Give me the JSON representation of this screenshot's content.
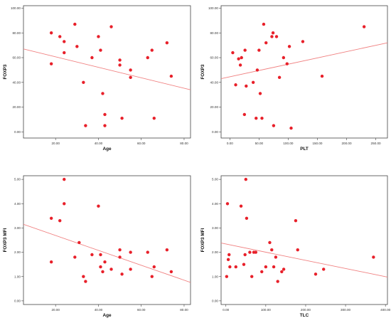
{
  "colors": {
    "point": "#e8202a",
    "fit_line": "#f08080",
    "axis": "#444444"
  },
  "chart_data": [
    {
      "type": "scatter",
      "xlabel": "Age",
      "ylabel": "FOXP3",
      "xlim": [
        5,
        83
      ],
      "ylim": [
        -5,
        102
      ],
      "xticks": [
        "20.00",
        "40.00",
        "60.00",
        "80.00"
      ],
      "yticks": [
        "0.00",
        "20.00",
        "40.00",
        "60.00",
        "80.00",
        "100.00"
      ],
      "x": [
        18,
        18,
        22,
        24,
        24,
        29,
        30,
        33,
        34,
        37,
        40,
        41,
        42,
        43,
        43,
        46,
        50,
        50,
        51,
        55,
        55,
        63,
        65,
        66,
        72,
        74
      ],
      "y": [
        80,
        55,
        77,
        73,
        64,
        87,
        69,
        40,
        5,
        60,
        77,
        66,
        31,
        5,
        14,
        85,
        58,
        54,
        11,
        50,
        44,
        60,
        66,
        11,
        72,
        45
      ],
      "fit_line": [
        [
          5,
          67
        ],
        [
          83,
          34
        ]
      ]
    },
    {
      "type": "scatter",
      "xlabel": "PLT",
      "ylabel": "FOXP3",
      "xlim": [
        -15,
        270
      ],
      "ylim": [
        -5,
        102
      ],
      "xticks": [
        "0.00",
        "50.00",
        "100.00",
        "150.00",
        "200.00",
        "250.00"
      ],
      "yticks": [
        "0.00",
        "20.00",
        "40.00",
        "60.00",
        "80.00",
        "100.00"
      ],
      "x": [
        5,
        10,
        15,
        18,
        20,
        25,
        26,
        28,
        40,
        45,
        47,
        50,
        52,
        55,
        58,
        62,
        72,
        74,
        75,
        80,
        85,
        92,
        98,
        102,
        105,
        125,
        158,
        230
      ],
      "y": [
        64,
        38,
        59,
        54,
        60,
        14,
        66,
        37,
        40,
        11,
        50,
        66,
        31,
        11,
        87,
        72,
        77,
        80,
        5,
        77,
        44,
        60,
        55,
        69,
        3,
        73,
        45,
        85
      ],
      "fit_line": [
        [
          -15,
          43
        ],
        [
          270,
          72
        ]
      ]
    },
    {
      "type": "scatter",
      "xlabel": "Age",
      "ylabel": "FOXP3 MFI",
      "xlim": [
        5,
        83
      ],
      "ylim": [
        -0.15,
        5.15
      ],
      "xticks": [
        "20.00",
        "40.00",
        "60.00",
        "80.00"
      ],
      "yticks": [
        "0.00",
        "1.00",
        "2.00",
        "3.00",
        "4.00",
        "5.00"
      ],
      "x": [
        18,
        18,
        22,
        24,
        24,
        29,
        31,
        33,
        34,
        37,
        40,
        41,
        41,
        42,
        43,
        46,
        50,
        50,
        51,
        55,
        55,
        63,
        65,
        66,
        72,
        74
      ],
      "y": [
        3.4,
        1.6,
        3.3,
        5.0,
        4.0,
        1.8,
        2.4,
        1.0,
        0.8,
        1.9,
        3.9,
        1.9,
        1.4,
        1.2,
        1.6,
        1.3,
        1.8,
        2.1,
        1.1,
        2.0,
        1.3,
        2.0,
        1.0,
        1.4,
        2.1,
        1.2
      ],
      "fit_line": [
        [
          5,
          3.15
        ],
        [
          83,
          0.76
        ]
      ]
    },
    {
      "type": "scatter",
      "xlabel": "TLC",
      "ylabel": "FOXP3 MFI",
      "xlim": [
        -12,
        405
      ],
      "ylim": [
        -0.15,
        5.15
      ],
      "xticks": [
        "0.00",
        "100.00",
        "200.00",
        "300.00",
        "400.00"
      ],
      "yticks": [
        "0.00",
        "1.00",
        "2.00",
        "3.00",
        "4.00",
        "5.00"
      ],
      "x": [
        2,
        4,
        6,
        8,
        10,
        25,
        38,
        45,
        48,
        50,
        52,
        60,
        65,
        70,
        75,
        90,
        100,
        110,
        115,
        120,
        125,
        130,
        140,
        145,
        175,
        180,
        225,
        245,
        370
      ],
      "y": [
        1.0,
        4.0,
        1.7,
        1.9,
        1.4,
        1.4,
        3.9,
        1.5,
        1.9,
        5.0,
        3.4,
        2.0,
        1.0,
        2.0,
        2.0,
        1.2,
        1.4,
        2.4,
        2.1,
        1.4,
        1.8,
        0.8,
        1.2,
        1.3,
        3.3,
        2.1,
        1.1,
        1.3,
        1.8
      ],
      "fit_line": [
        [
          -12,
          2.38
        ],
        [
          405,
          0.98
        ]
      ]
    }
  ]
}
